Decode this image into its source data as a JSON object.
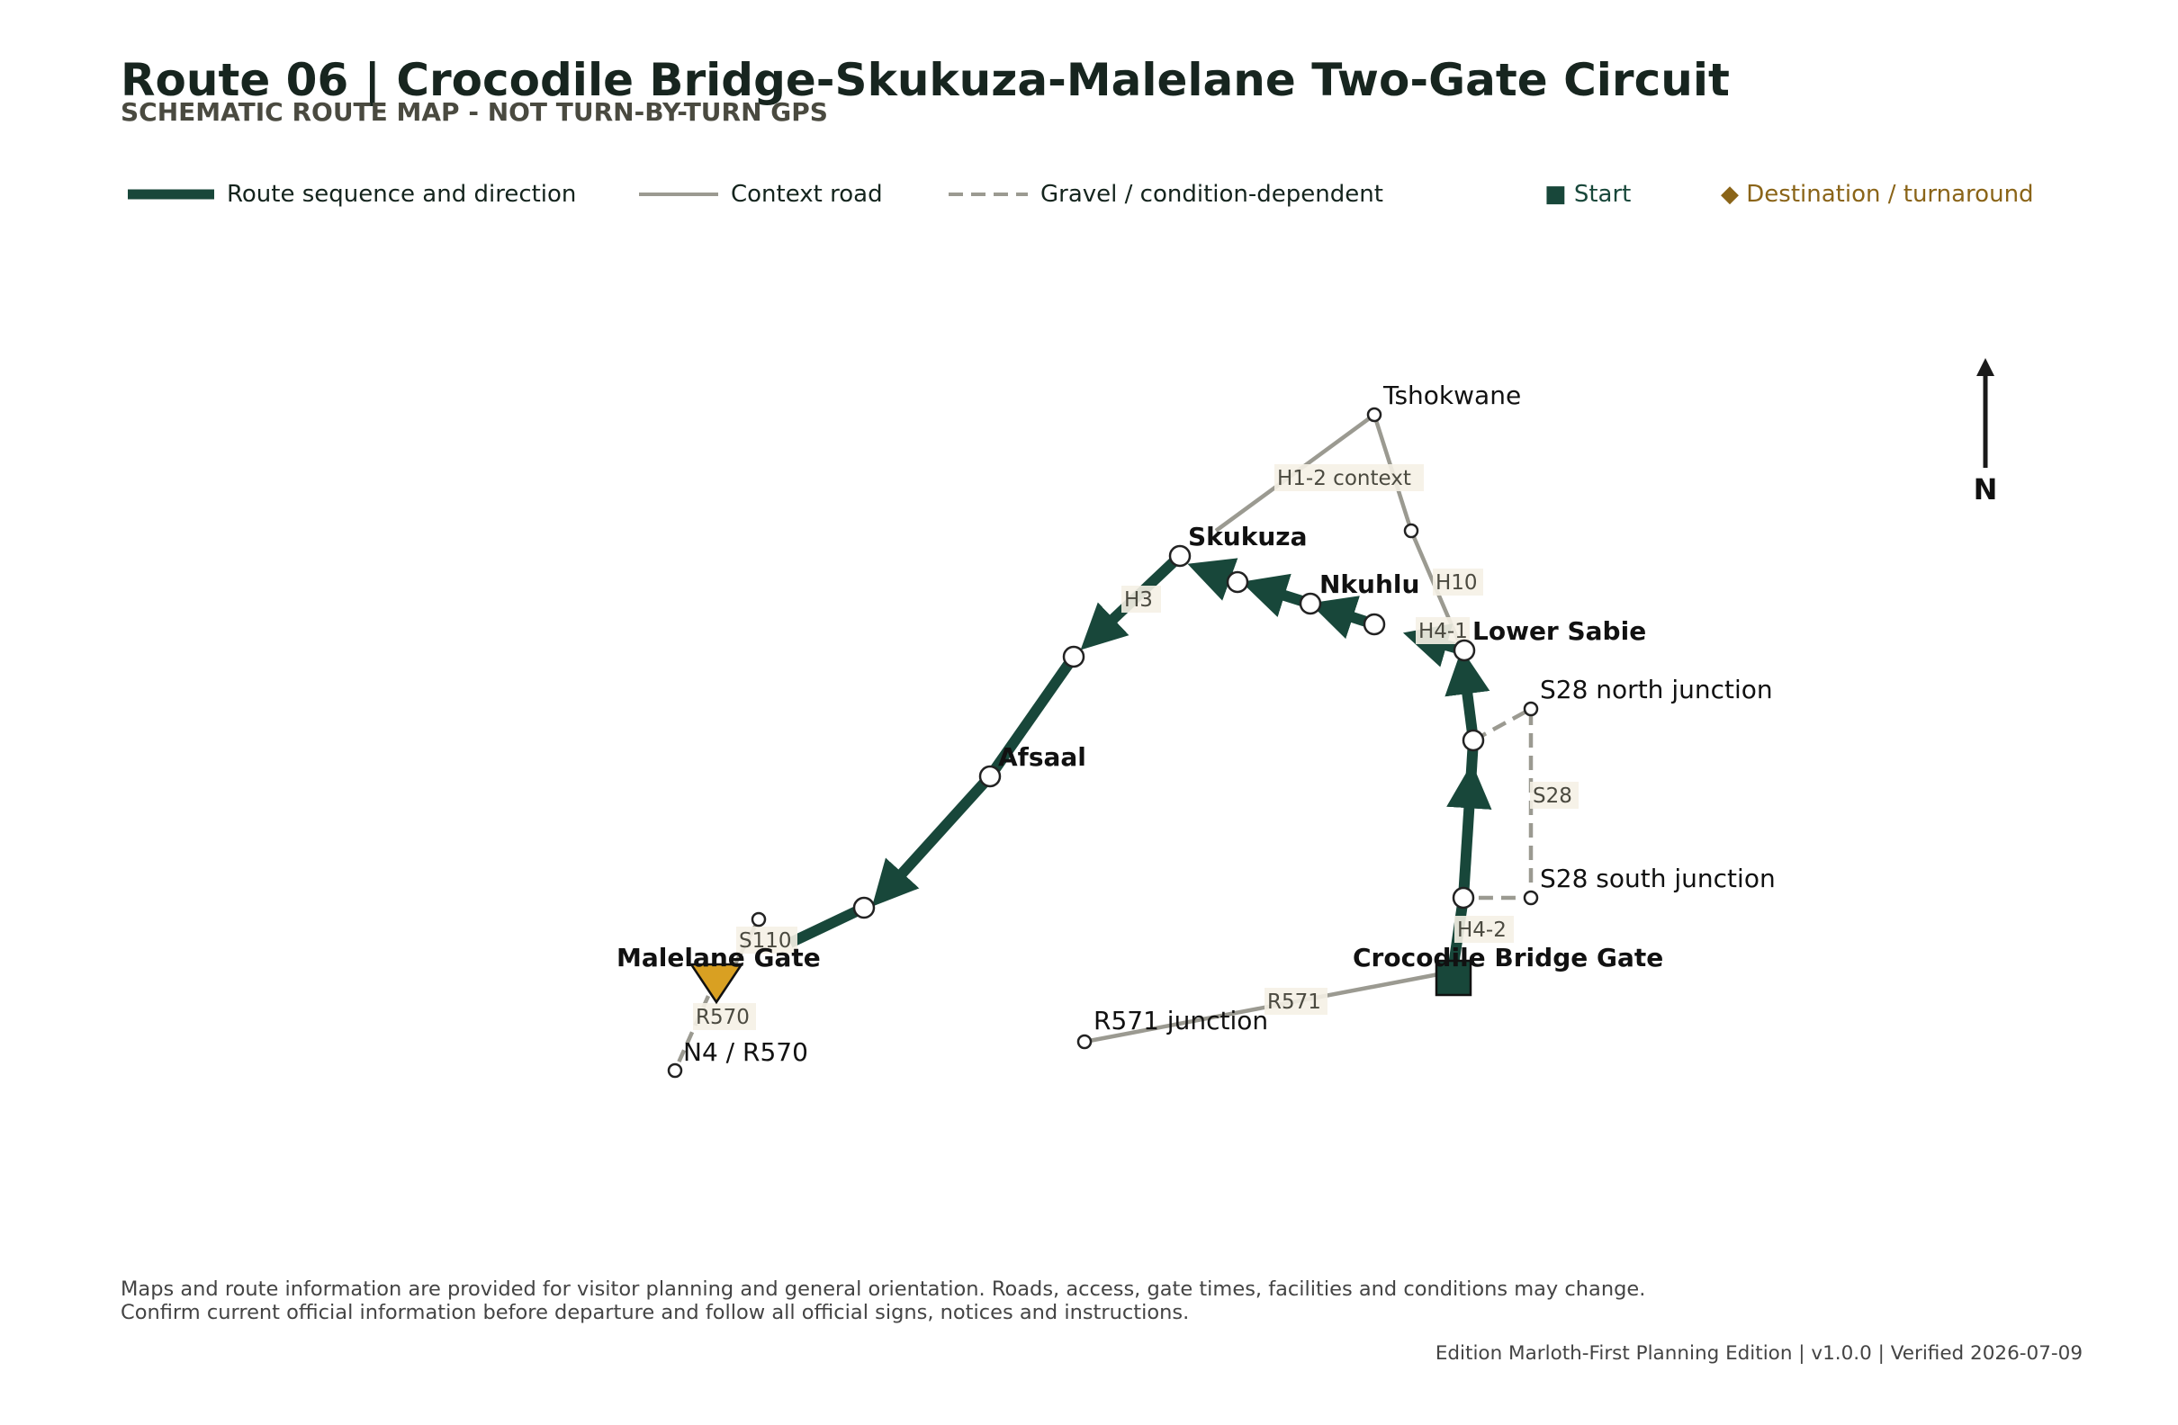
{
  "title": "Route 06 | Crocodile Bridge-Skukuza-Malelane Two-Gate Circuit",
  "subtitle": "SCHEMATIC ROUTE MAP - NOT TURN-BY-TURN GPS",
  "legend": {
    "route": "Route sequence and direction",
    "context": "Context road",
    "gravel": "Gravel / condition-dependent",
    "start": "■ Start",
    "destination": "◆ Destination / turnaround"
  },
  "colors": {
    "route": "#18473a",
    "context": "#9b9a91",
    "destination": "#d9a022",
    "destination_text": "#8a6418",
    "label_bg": "#f5f1e6"
  },
  "places": {
    "tshokwane": "Tshokwane",
    "skukuza": "Skukuza",
    "nkuhlu": "Nkuhlu",
    "lower_sabie": "Lower Sabie",
    "s28_north": "S28 north junction",
    "s28_south": "S28 south junction",
    "afsaal": "Afsaal",
    "malelane_gate": "Malelane Gate",
    "crocodile_bridge_gate": "Crocodile Bridge Gate",
    "r571_junction": "R571 junction",
    "n4_r570": "N4 / R570"
  },
  "roads": {
    "h1_2": "H1-2 context",
    "h10": "H10",
    "h3": "H3",
    "h4_1": "H4-1",
    "s28": "S28",
    "h4_2": "H4-2",
    "r571": "R571",
    "s110": "S110",
    "r570": "R570"
  },
  "north": "N",
  "footer": {
    "disclaimer_1": "Maps and route information are provided for visitor planning and general orientation. Roads, access, gate times, facilities and conditions may change.",
    "disclaimer_2": "Confirm current official information before departure and follow all official signs, notices and instructions.",
    "edition": "Edition Marloth-First Planning Edition | v1.0.0 | Verified 2026-07-09"
  }
}
